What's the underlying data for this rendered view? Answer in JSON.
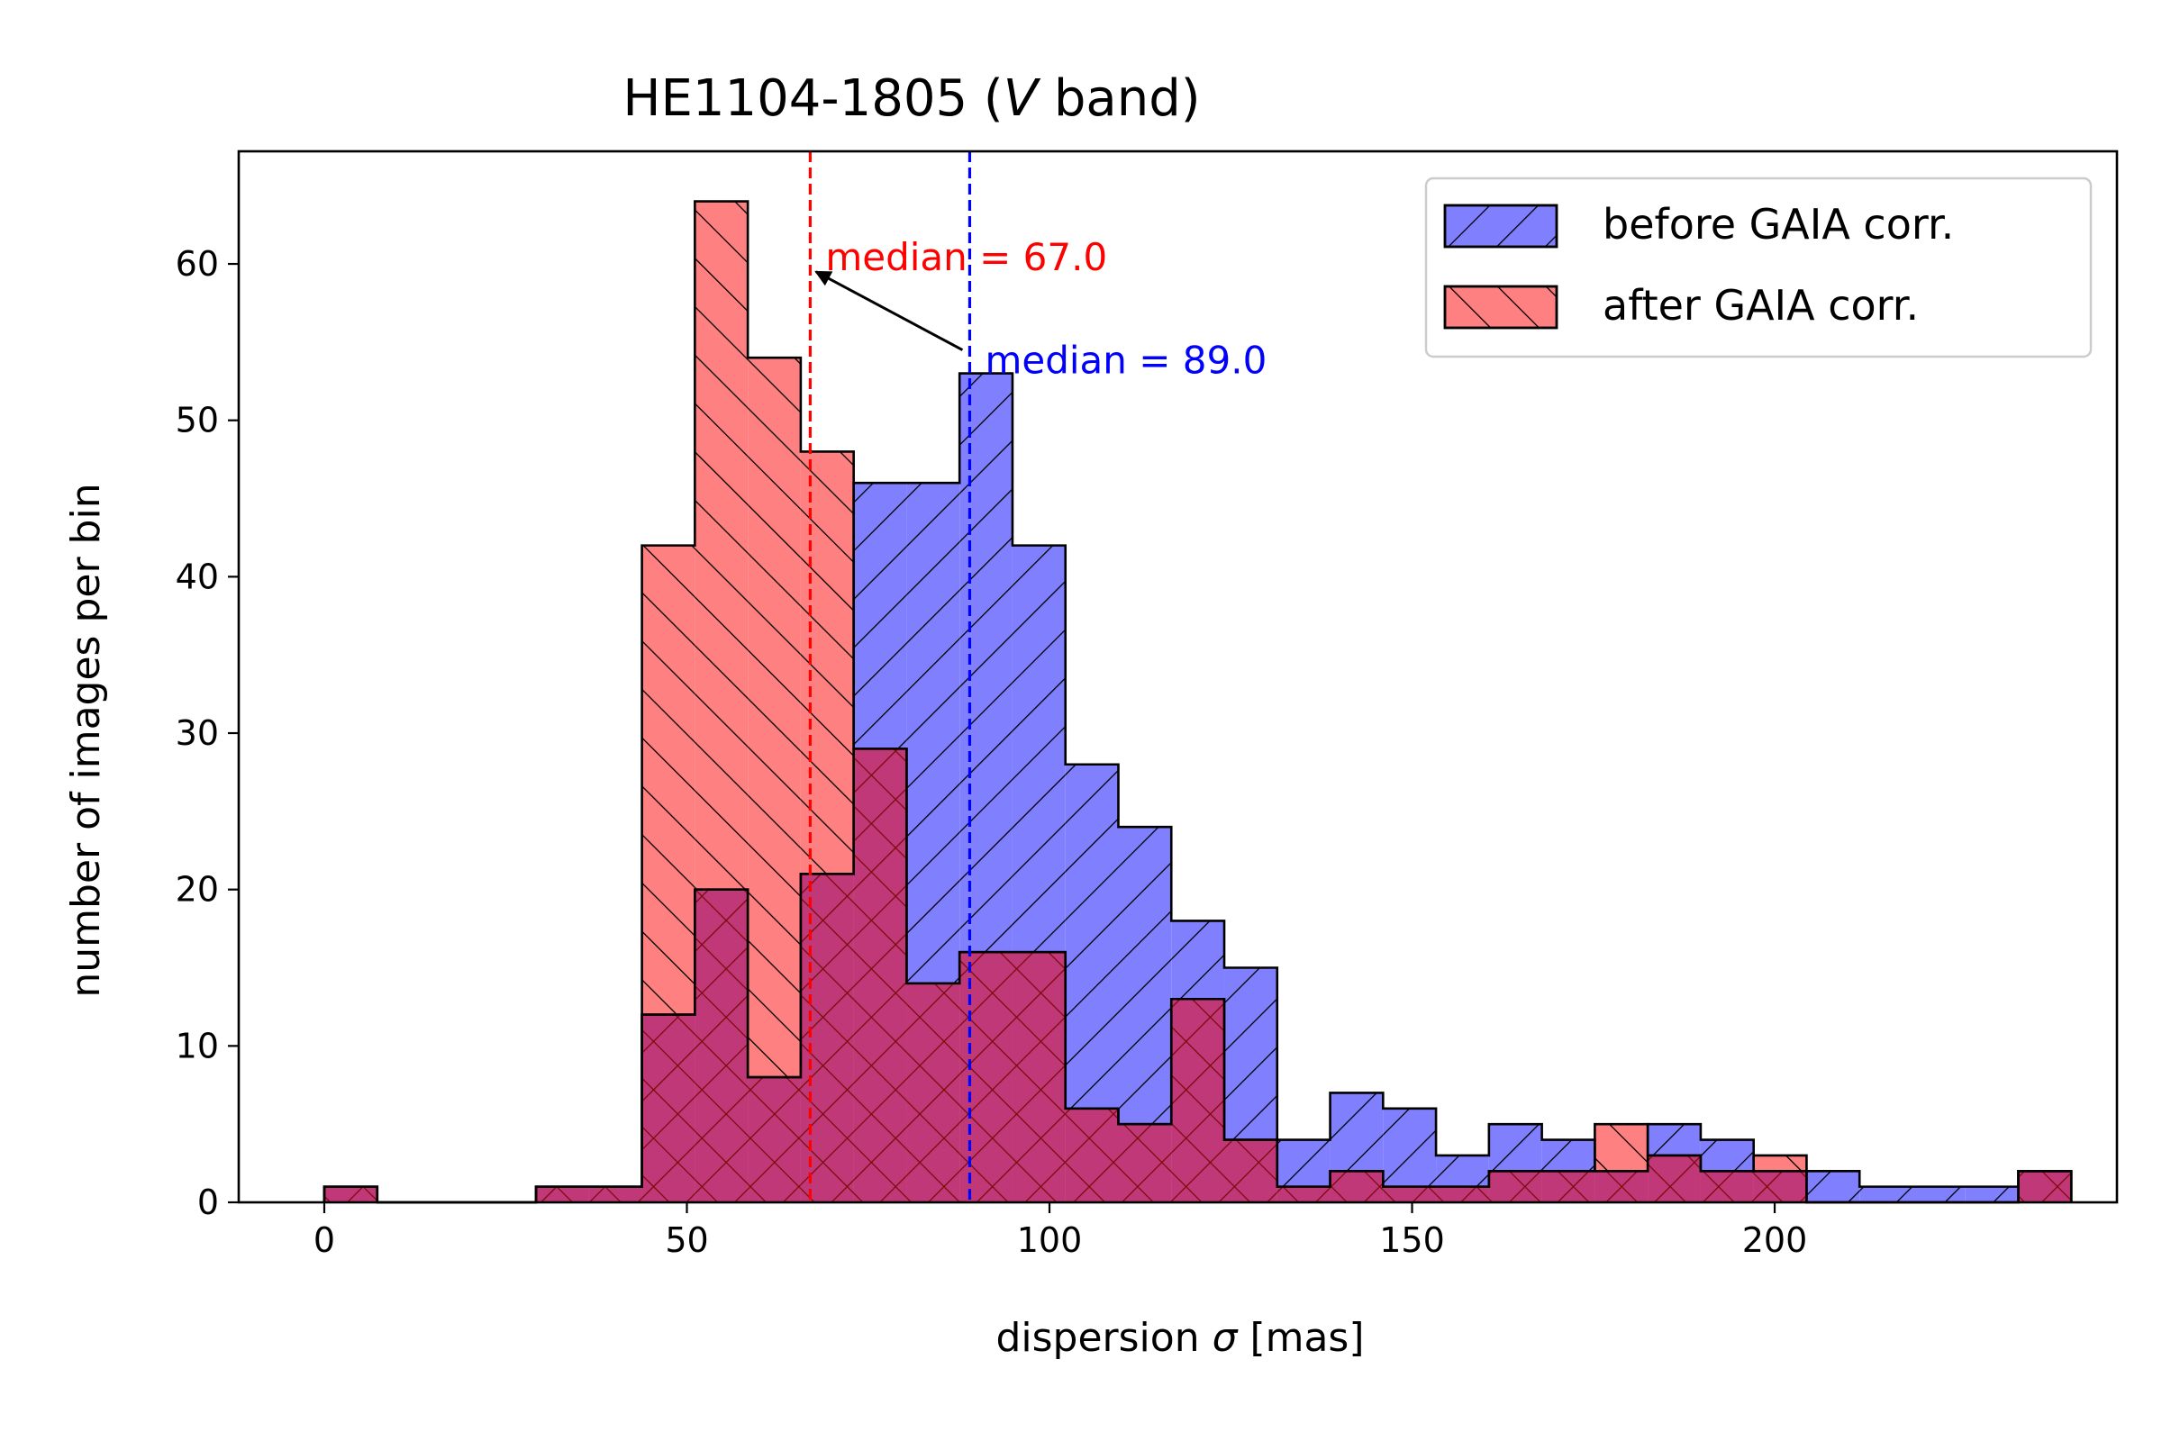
{
  "chart_data": {
    "type": "histogram",
    "title_prefix": "HE1104-1805 (",
    "title_var": "V",
    "title_suffix": " band)",
    "xlabel_prefix": "dispersion ",
    "xlabel_var": "σ",
    "xlabel_suffix": " [mas]",
    "ylabel": "number of images per bin",
    "xlim": [
      -11.8,
      247.2
    ],
    "ylim": [
      0,
      67.2
    ],
    "xticks": [
      0,
      50,
      100,
      150,
      200
    ],
    "yticks": [
      0,
      10,
      20,
      30,
      40,
      50,
      60
    ],
    "bin_edges": [
      0,
      7.3,
      14.6,
      21.9,
      29.2,
      36.5,
      43.8,
      51.1,
      58.4,
      65.7,
      73,
      80.3,
      87.6,
      94.9,
      102.2,
      109.5,
      116.8,
      124.1,
      131.4,
      138.7,
      146,
      153.3,
      160.6,
      167.9,
      175.2,
      182.5,
      189.8,
      197.1,
      204.4,
      211.7,
      219,
      226.3,
      233.6
    ],
    "series": [
      {
        "name": "before GAIA corr.",
        "color": "#8080ff",
        "edge": "#000000",
        "hatch": "/",
        "values": [
          1,
          0,
          0,
          0,
          1,
          1,
          12,
          20,
          8,
          21,
          46,
          46,
          53,
          42,
          28,
          24,
          18,
          15,
          4,
          7,
          6,
          3,
          5,
          4,
          2,
          5,
          4,
          2,
          2,
          1,
          1,
          1,
          2
        ]
      },
      {
        "name": "after GAIA corr.",
        "color": "#ff8080",
        "edge": "#000000",
        "hatch": "\\",
        "values": [
          1,
          0,
          0,
          0,
          1,
          1,
          42,
          64,
          54,
          48,
          29,
          14,
          16,
          16,
          6,
          5,
          13,
          4,
          1,
          2,
          1,
          1,
          2,
          2,
          5,
          3,
          2,
          3,
          0,
          0,
          0,
          0,
          2
        ]
      }
    ],
    "overlap_color": "#c03878",
    "overlap_edge": "#7a0a0a",
    "medians": [
      {
        "label": "median = 67.0",
        "value": 67.0,
        "color": "#ff0000"
      },
      {
        "label": "median = 89.0",
        "value": 89.0,
        "color": "#0000ff"
      }
    ],
    "arrow": {
      "from": [
        88.0,
        54.5
      ],
      "to": [
        67.8,
        59.5
      ]
    },
    "legend_position": "upper right"
  }
}
